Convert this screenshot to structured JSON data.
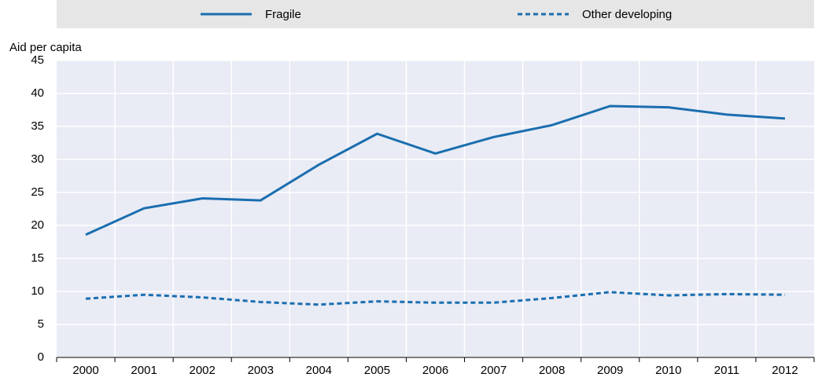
{
  "chart_data": {
    "type": "line",
    "y_label": "Aid per capita",
    "categories": [
      "2000",
      "2001",
      "2002",
      "2003",
      "2004",
      "2005",
      "2006",
      "2007",
      "2008",
      "2009",
      "2010",
      "2011",
      "2012"
    ],
    "series": [
      {
        "name": "Fragile",
        "color": "#1a6eaf",
        "style": "solid",
        "values": [
          18.6,
          22.6,
          24.1,
          23.8,
          29.2,
          33.9,
          30.9,
          33.4,
          35.2,
          38.1,
          37.9,
          36.8,
          36.2
        ]
      },
      {
        "name": "Other developing",
        "color": "#1a6eaf",
        "style": "dashed",
        "values": [
          8.9,
          9.5,
          9.1,
          8.4,
          8.0,
          8.5,
          8.3,
          8.3,
          9.0,
          9.9,
          9.4,
          9.6,
          9.5
        ]
      }
    ],
    "ylim": [
      0,
      45
    ],
    "yticks": [
      0,
      5,
      10,
      15,
      20,
      25,
      30,
      35,
      40,
      45
    ],
    "grid": true,
    "legend": "top"
  }
}
